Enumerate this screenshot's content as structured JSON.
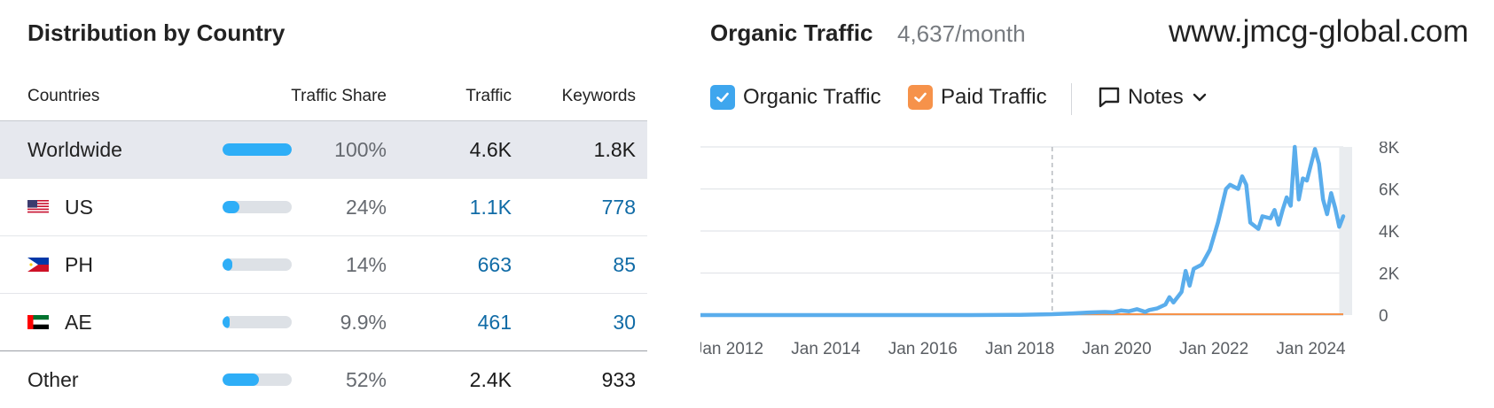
{
  "left_panel": {
    "title": "Distribution by Country",
    "columns": {
      "countries": "Countries",
      "traffic_share": "Traffic Share",
      "traffic": "Traffic",
      "keywords": "Keywords"
    },
    "rows": [
      {
        "name": "Worldwide",
        "flag": "",
        "share_pct": 100,
        "share_label": "100%",
        "traffic": "4.6K",
        "keywords": "1.8K"
      },
      {
        "name": "US",
        "flag": "us-flag-icon",
        "share_pct": 24,
        "share_label": "24%",
        "traffic": "1.1K",
        "keywords": "778"
      },
      {
        "name": "PH",
        "flag": "ph-flag-icon",
        "share_pct": 14,
        "share_label": "14%",
        "traffic": "663",
        "keywords": "85"
      },
      {
        "name": "AE",
        "flag": "ae-flag-icon",
        "share_pct": 9.9,
        "share_label": "9.9%",
        "traffic": "461",
        "keywords": "30"
      },
      {
        "name": "Other",
        "flag": "",
        "share_pct": 52,
        "share_label": "52%",
        "traffic": "2.4K",
        "keywords": "933"
      }
    ]
  },
  "right_panel": {
    "title": "Organic Traffic",
    "subtitle": "4,637/month",
    "watermark": "www.jmcg-global.com",
    "legend": {
      "organic_label": "Organic Traffic",
      "paid_label": "Paid Traffic",
      "notes_label": "Notes"
    },
    "colors": {
      "organic": "#5aadec",
      "paid": "#f6924a",
      "bar_fill": "#2eaef7"
    }
  },
  "chart_data": {
    "type": "line",
    "title": "Organic Traffic",
    "xlabel": "",
    "ylabel": "",
    "x_ticks": [
      "Jan 2012",
      "Jan 2014",
      "Jan 2016",
      "Jan 2018",
      "Jan 2020",
      "Jan 2022",
      "Jan 2024"
    ],
    "y_ticks": [
      "0",
      "2K",
      "4K",
      "6K",
      "8K"
    ],
    "ylim": [
      0,
      8000
    ],
    "xlim": [
      "Jun 2011",
      "Sep 2024"
    ],
    "marker_date": "Sep 2018",
    "grid": true,
    "series": [
      {
        "name": "Organic Traffic",
        "points": [
          [
            "Jun 2011",
            0
          ],
          [
            "Jan 2013",
            0
          ],
          [
            "Jan 2015",
            0
          ],
          [
            "Jan 2017",
            0
          ],
          [
            "Jan 2018",
            10
          ],
          [
            "Sep 2018",
            40
          ],
          [
            "Feb 2019",
            80
          ],
          [
            "Jun 2019",
            120
          ],
          [
            "Oct 2019",
            150
          ],
          [
            "Dec 2019",
            130
          ],
          [
            "Feb 2020",
            220
          ],
          [
            "Apr 2020",
            180
          ],
          [
            "Jun 2020",
            280
          ],
          [
            "Aug 2020",
            150
          ],
          [
            "Sep 2020",
            240
          ],
          [
            "Nov 2020",
            320
          ],
          [
            "Jan 2021",
            500
          ],
          [
            "Feb 2021",
            850
          ],
          [
            "Mar 2021",
            600
          ],
          [
            "May 2021",
            1100
          ],
          [
            "Jun 2021",
            2100
          ],
          [
            "Jul 2021",
            1400
          ],
          [
            "Aug 2021",
            2200
          ],
          [
            "Oct 2021",
            2400
          ],
          [
            "Dec 2021",
            3100
          ],
          [
            "Feb 2022",
            4400
          ],
          [
            "Apr 2022",
            6000
          ],
          [
            "May 2022",
            6200
          ],
          [
            "Jul 2022",
            6000
          ],
          [
            "Aug 2022",
            6600
          ],
          [
            "Sep 2022",
            6200
          ],
          [
            "Oct 2022",
            4400
          ],
          [
            "Dec 2022",
            4100
          ],
          [
            "Jan 2023",
            4700
          ],
          [
            "Mar 2023",
            4600
          ],
          [
            "Apr 2023",
            5000
          ],
          [
            "May 2023",
            4300
          ],
          [
            "Jun 2023",
            5000
          ],
          [
            "Jul 2023",
            5600
          ],
          [
            "Aug 2023",
            5200
          ],
          [
            "Sep 2023",
            8000
          ],
          [
            "Oct 2023",
            5500
          ],
          [
            "Nov 2023",
            6500
          ],
          [
            "Dec 2023",
            6400
          ],
          [
            "Feb 2024",
            7900
          ],
          [
            "Mar 2024",
            7200
          ],
          [
            "Apr 2024",
            5500
          ],
          [
            "May 2024",
            4800
          ],
          [
            "Jun 2024",
            5800
          ],
          [
            "Jul 2024",
            5100
          ],
          [
            "Aug 2024",
            4200
          ],
          [
            "Sep 2024",
            4700
          ]
        ]
      },
      {
        "name": "Paid Traffic",
        "points": [
          [
            "Jun 2011",
            0
          ],
          [
            "Sep 2024",
            0
          ]
        ]
      }
    ]
  }
}
